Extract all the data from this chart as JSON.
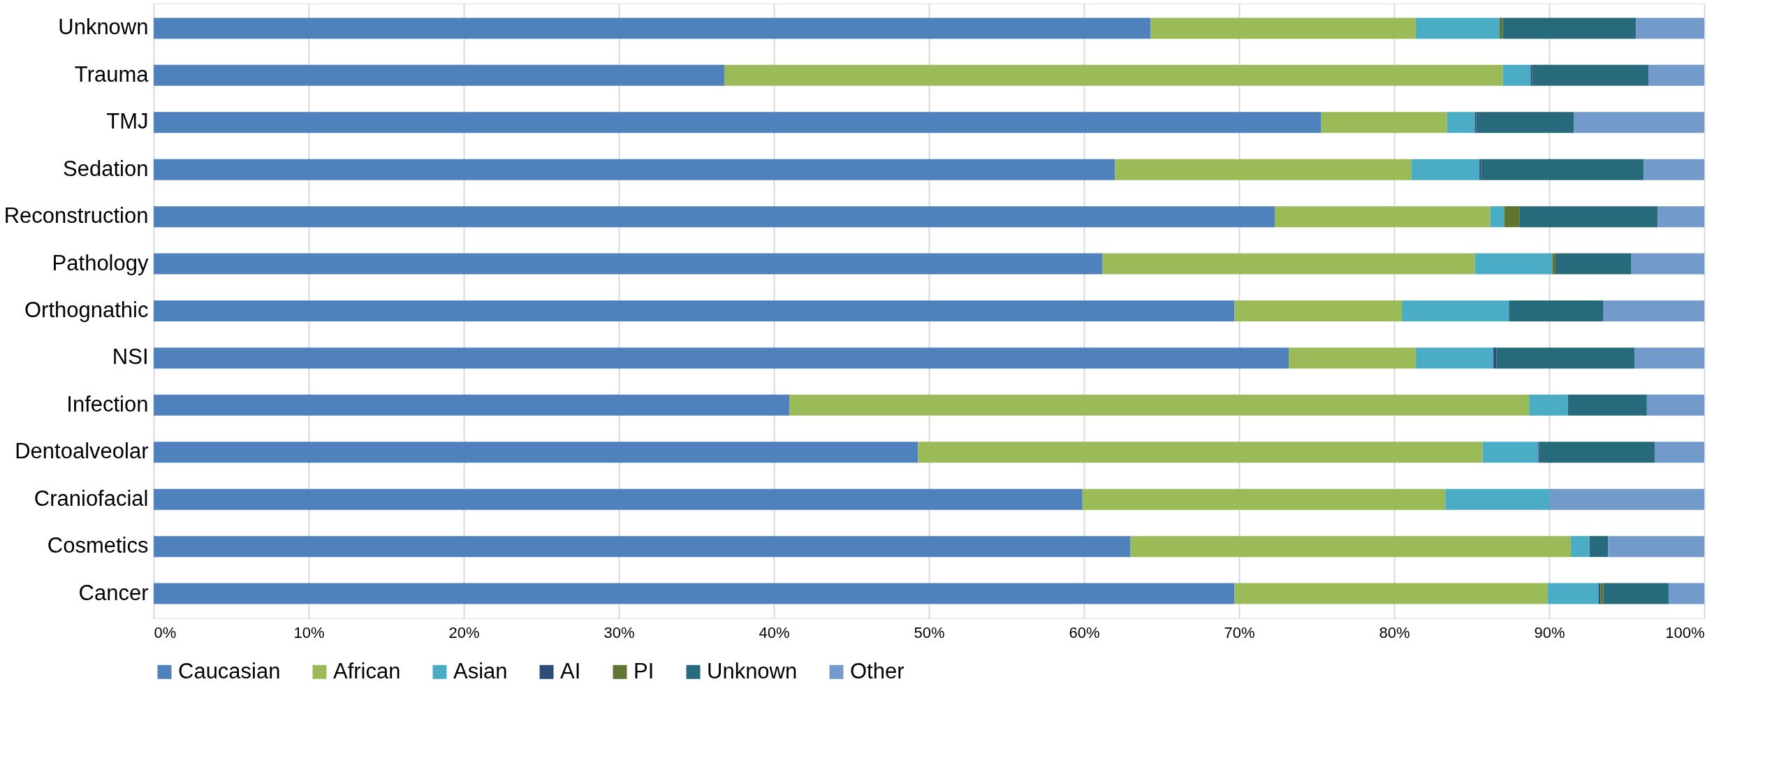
{
  "chart_data": {
    "type": "bar",
    "orientation": "horizontal",
    "stacked": true,
    "categories": [
      "Unknown",
      "Trauma",
      "TMJ",
      "Sedation",
      "Reconstruction",
      "Pathology",
      "Orthognathic",
      "NSI",
      "Infection",
      "Dentoalveolar",
      "Craniofacial",
      "Cosmetics",
      "Cancer"
    ],
    "series": [
      {
        "name": "Caucasian",
        "color": "#4f81bd",
        "values": [
          64.3,
          36.8,
          75.3,
          62.0,
          72.3,
          61.2,
          69.7,
          73.2,
          41.0,
          49.3,
          59.9,
          63.0,
          69.7
        ]
      },
      {
        "name": "African",
        "color": "#9bbb59",
        "values": [
          17.1,
          50.2,
          8.1,
          19.1,
          13.9,
          24.0,
          10.8,
          8.2,
          47.7,
          36.4,
          23.4,
          28.4,
          20.2
        ]
      },
      {
        "name": "Asian",
        "color": "#4bacc6",
        "values": [
          5.4,
          1.8,
          1.8,
          4.4,
          0.9,
          5.0,
          6.9,
          5.0,
          2.5,
          3.6,
          6.7,
          1.2,
          3.3
        ]
      },
      {
        "name": "AI",
        "color": "#2c4d75",
        "values": [
          0,
          0.1,
          0.1,
          0.1,
          0,
          0,
          0,
          0.2,
          0,
          0.1,
          0,
          0,
          0.1
        ]
      },
      {
        "name": "PI",
        "color": "#5f7530",
        "values": [
          0.2,
          0,
          0,
          0,
          1.0,
          0.2,
          0,
          0,
          0,
          0,
          0,
          0,
          0.2
        ]
      },
      {
        "name": "Unknown",
        "color": "#276a7c",
        "values": [
          8.6,
          7.5,
          6.3,
          10.5,
          8.9,
          4.9,
          6.1,
          8.9,
          5.1,
          7.4,
          0,
          1.2,
          4.2
        ]
      },
      {
        "name": "Other",
        "color": "#729aca",
        "values": [
          4.4,
          3.6,
          8.4,
          3.9,
          3.0,
          4.7,
          6.5,
          4.5,
          3.7,
          3.2,
          10.0,
          6.2,
          2.3
        ]
      }
    ],
    "xlim": [
      0,
      100
    ],
    "xticks": [
      {
        "value": 0,
        "label": "0%"
      },
      {
        "value": 10,
        "label": "10%"
      },
      {
        "value": 20,
        "label": "20%"
      },
      {
        "value": 30,
        "label": "30%"
      },
      {
        "value": 40,
        "label": "40%"
      },
      {
        "value": 50,
        "label": "50%"
      },
      {
        "value": 60,
        "label": "60%"
      },
      {
        "value": 70,
        "label": "70%"
      },
      {
        "value": 80,
        "label": "80%"
      },
      {
        "value": 90,
        "label": "90%"
      },
      {
        "value": 100,
        "label": "100%"
      }
    ],
    "grid": "x",
    "legend": "bottom"
  }
}
